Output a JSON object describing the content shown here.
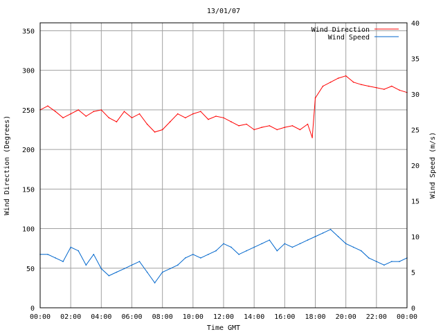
{
  "chart_data": {
    "type": "line",
    "title": "13/01/07",
    "xlabel": "Time GMT",
    "ylabel_left": "Wind Direction (Degrees)",
    "ylabel_right": "Wind Speed (m/s)",
    "x_ticks": [
      "00:00",
      "02:00",
      "04:00",
      "06:00",
      "08:00",
      "10:00",
      "12:00",
      "14:00",
      "16:00",
      "18:00",
      "20:00",
      "22:00",
      "00:00"
    ],
    "x_range_hours": [
      0,
      24
    ],
    "y_left_range": [
      0,
      360
    ],
    "y_left_ticks": [
      0,
      50,
      100,
      150,
      200,
      250,
      300,
      350
    ],
    "y_right_range": [
      0,
      40
    ],
    "y_right_ticks": [
      0,
      5,
      10,
      15,
      20,
      25,
      30,
      35,
      40
    ],
    "grid": true,
    "legend_position": "top-right",
    "series": [
      {
        "name": "Wind Direction",
        "axis": "left",
        "color": "#ff0000",
        "x_hours": [
          0,
          0.5,
          1,
          1.5,
          2,
          2.5,
          3,
          3.5,
          4,
          4.5,
          5,
          5.5,
          6,
          6.5,
          7,
          7.5,
          8,
          8.5,
          9,
          9.5,
          10,
          10.5,
          11,
          11.5,
          12,
          12.5,
          13,
          13.5,
          14,
          14.5,
          15,
          15.5,
          16,
          16.5,
          17,
          17.5,
          17.8,
          18,
          18.5,
          19,
          19.5,
          20,
          20.5,
          21,
          21.5,
          22,
          22.5,
          23,
          23.5,
          24
        ],
        "values": [
          250,
          255,
          248,
          240,
          245,
          250,
          242,
          248,
          250,
          240,
          235,
          248,
          240,
          245,
          232,
          222,
          225,
          235,
          245,
          240,
          245,
          248,
          238,
          242,
          240,
          235,
          230,
          232,
          225,
          228,
          230,
          225,
          228,
          230,
          225,
          232,
          215,
          265,
          280,
          285,
          290,
          293,
          285,
          282,
          280,
          278,
          276,
          280,
          275,
          272
        ]
      },
      {
        "name": "Wind Speed",
        "axis": "right",
        "color": "#0066cc",
        "x_hours": [
          0,
          0.5,
          1,
          1.5,
          2,
          2.5,
          3,
          3.5,
          4,
          4.5,
          5,
          5.5,
          6,
          6.5,
          7,
          7.5,
          8,
          8.5,
          9,
          9.5,
          10,
          10.5,
          11,
          11.5,
          12,
          12.5,
          13,
          13.5,
          14,
          14.5,
          15,
          15.5,
          16,
          16.5,
          17,
          17.5,
          18,
          18.5,
          19,
          19.5,
          20,
          20.5,
          21,
          21.5,
          22,
          22.5,
          23,
          23.5,
          24
        ],
        "values": [
          7.5,
          7.5,
          7,
          6.5,
          8.5,
          8,
          6,
          7.5,
          5.5,
          4.5,
          5,
          5.5,
          6,
          6.5,
          5,
          3.5,
          5,
          5.5,
          6,
          7,
          7.5,
          7,
          7.5,
          8,
          9,
          8.5,
          7.5,
          8,
          8.5,
          9,
          9.5,
          8,
          9,
          8.5,
          9,
          9.5,
          10,
          10.5,
          11,
          10,
          9,
          8.5,
          8,
          7,
          6.5,
          6,
          6.5,
          6.5,
          7
        ]
      }
    ]
  }
}
